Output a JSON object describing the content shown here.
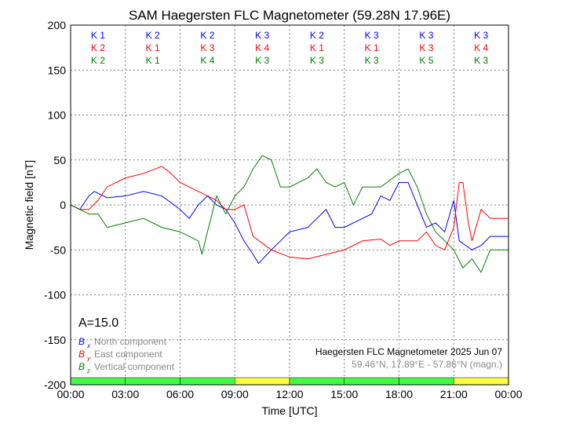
{
  "chart_data": {
    "type": "line",
    "title": "SAM Haegersten FLC Magnetometer (59.28N 17.96E)",
    "xlabel": "Time [UTC]",
    "ylabel": "Magnetic field [nT]",
    "xlim": [
      0,
      24
    ],
    "ylim": [
      -200,
      200
    ],
    "x_ticks": [
      0,
      3,
      6,
      9,
      12,
      15,
      18,
      21,
      24
    ],
    "x_tick_labels": [
      "00:00",
      "03:00",
      "06:00",
      "09:00",
      "12:00",
      "15:00",
      "18:00",
      "21:00",
      "00:00"
    ],
    "y_ticks": [
      -200,
      -150,
      -100,
      -50,
      0,
      50,
      100,
      150,
      200
    ],
    "grid": true,
    "k_indices": [
      {
        "color": "#0000ff",
        "values": [
          "K 1",
          "K 2",
          "K 2",
          "K 3",
          "K 2",
          "K 3",
          "K 3",
          "K 3"
        ]
      },
      {
        "color": "#ff0000",
        "values": [
          "K 2",
          "K 1",
          "K 3",
          "K 4",
          "K 1",
          "K 1",
          "K 3",
          "K 4"
        ]
      },
      {
        "color": "#008000",
        "values": [
          "K 2",
          "K 1",
          "K 4",
          "K 3",
          "K 3",
          "K 3",
          "K 5",
          "K 3"
        ]
      }
    ],
    "activity_bar": [
      "#40ff40",
      "#40ff40",
      "#40ff40",
      "#ffff40",
      "#40ff40",
      "#40ff40",
      "#40ff40",
      "#ffff40"
    ],
    "a_index": "A=15.0",
    "legend": [
      {
        "symbol": "B",
        "sub": "x",
        "label": "North component",
        "color": "#0000ff"
      },
      {
        "symbol": "B",
        "sub": "y",
        "label": "East component",
        "color": "#ff0000"
      },
      {
        "symbol": "B",
        "sub": "z",
        "label": "Vertical component",
        "color": "#008000"
      }
    ],
    "station_label": "Haegersten FLC Magnetometer 2025 Jun 07",
    "coords_label": "59.46°N, 17.89°E - 57.86°N (magn.)",
    "series": [
      {
        "name": "Bx",
        "color": "#0000ff",
        "x": [
          0,
          0.5,
          1,
          1.3,
          2,
          3,
          4,
          5,
          6,
          6.5,
          7,
          7.5,
          8,
          8.5,
          9,
          9.5,
          10,
          10.3,
          11,
          11.5,
          12,
          13,
          13.5,
          14,
          14.5,
          15,
          16,
          16.5,
          17,
          17.5,
          18,
          18.5,
          19,
          19.5,
          20,
          20.5,
          21,
          21.3,
          22,
          22.5,
          23,
          24
        ],
        "y": [
          0,
          -5,
          10,
          15,
          8,
          10,
          15,
          10,
          -5,
          -15,
          0,
          10,
          0,
          -5,
          -20,
          -40,
          -55,
          -65,
          -50,
          -40,
          -30,
          -25,
          -15,
          -5,
          -25,
          -25,
          -15,
          -10,
          10,
          5,
          25,
          25,
          0,
          -25,
          -20,
          -30,
          5,
          -40,
          -50,
          -45,
          -35,
          -35
        ]
      },
      {
        "name": "By",
        "color": "#ff0000",
        "x": [
          0,
          0.5,
          1,
          1.5,
          2,
          3,
          4,
          5,
          5.5,
          6,
          7,
          8,
          8.5,
          9,
          9.5,
          10,
          11,
          12,
          13,
          14,
          15,
          16,
          17,
          17.5,
          18,
          19,
          19.5,
          20,
          20.5,
          21,
          21.3,
          21.5,
          21.8,
          22,
          22.5,
          23,
          24
        ],
        "y": [
          0,
          -5,
          -5,
          5,
          20,
          30,
          35,
          43,
          35,
          25,
          15,
          5,
          -5,
          -5,
          0,
          -35,
          -50,
          -58,
          -60,
          -55,
          -50,
          -40,
          -38,
          -45,
          -40,
          -40,
          -30,
          -45,
          -50,
          -25,
          25,
          25,
          -20,
          -40,
          -5,
          -15,
          -15
        ]
      },
      {
        "name": "Bz",
        "color": "#008000",
        "x": [
          0,
          0.5,
          1,
          1.5,
          2,
          3,
          4,
          5,
          6,
          7,
          7.2,
          7.5,
          8,
          8.5,
          9,
          9.5,
          10,
          10.5,
          11,
          11.5,
          12,
          13,
          13.5,
          14,
          14.5,
          15,
          15.5,
          16,
          17,
          18,
          18.5,
          19,
          19.5,
          20,
          20.5,
          21,
          21.5,
          22,
          22.5,
          23,
          24
        ],
        "y": [
          0,
          -5,
          -10,
          -10,
          -25,
          -20,
          -15,
          -25,
          -30,
          -40,
          -55,
          -30,
          10,
          -10,
          10,
          20,
          40,
          55,
          50,
          20,
          20,
          30,
          40,
          25,
          20,
          25,
          0,
          20,
          20,
          35,
          40,
          20,
          -10,
          -30,
          -40,
          -50,
          -70,
          -60,
          -75,
          -50,
          -50
        ]
      }
    ]
  }
}
